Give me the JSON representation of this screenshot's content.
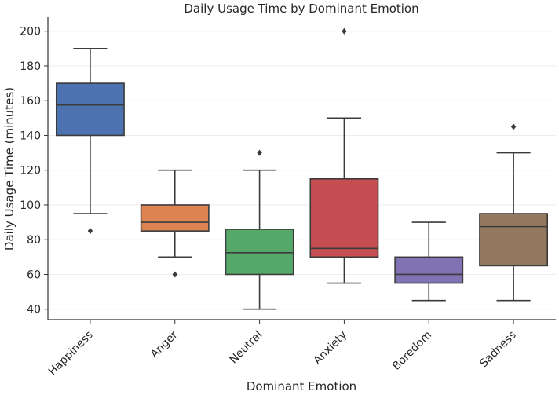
{
  "chart_data": {
    "type": "box",
    "title": "Daily Usage Time by Dominant Emotion",
    "xlabel": "Dominant Emotion",
    "ylabel": "Daily Usage Time (minutes)",
    "ylim": [
      34,
      208
    ],
    "yticks": [
      40,
      60,
      80,
      100,
      120,
      140,
      160,
      180,
      200
    ],
    "grid": "horizontal",
    "categories": [
      "Happiness",
      "Anger",
      "Neutral",
      "Anxiety",
      "Boredom",
      "Sadness"
    ],
    "boxes": [
      {
        "category": "Happiness",
        "color": "#4c72b0",
        "whisker_low": 95,
        "q1": 140,
        "median": 157.5,
        "q3": 170,
        "whisker_high": 190,
        "outliers": [
          85
        ]
      },
      {
        "category": "Anger",
        "color": "#dd8452",
        "whisker_low": 70,
        "q1": 85,
        "median": 90,
        "q3": 100,
        "whisker_high": 120,
        "outliers": [
          60
        ]
      },
      {
        "category": "Neutral",
        "color": "#55a868",
        "whisker_low": 40,
        "q1": 60,
        "median": 72.5,
        "q3": 86,
        "whisker_high": 120,
        "outliers": [
          130
        ]
      },
      {
        "category": "Anxiety",
        "color": "#c44e52",
        "whisker_low": 55,
        "q1": 70,
        "median": 75,
        "q3": 115,
        "whisker_high": 150,
        "outliers": [
          200
        ]
      },
      {
        "category": "Boredom",
        "color": "#8172b3",
        "whisker_low": 45,
        "q1": 55,
        "median": 60,
        "q3": 70,
        "whisker_high": 90,
        "outliers": []
      },
      {
        "category": "Sadness",
        "color": "#937860",
        "whisker_low": 45,
        "q1": 65,
        "median": 87.5,
        "q3": 95,
        "whisker_high": 130,
        "outliers": [
          145
        ]
      }
    ]
  }
}
